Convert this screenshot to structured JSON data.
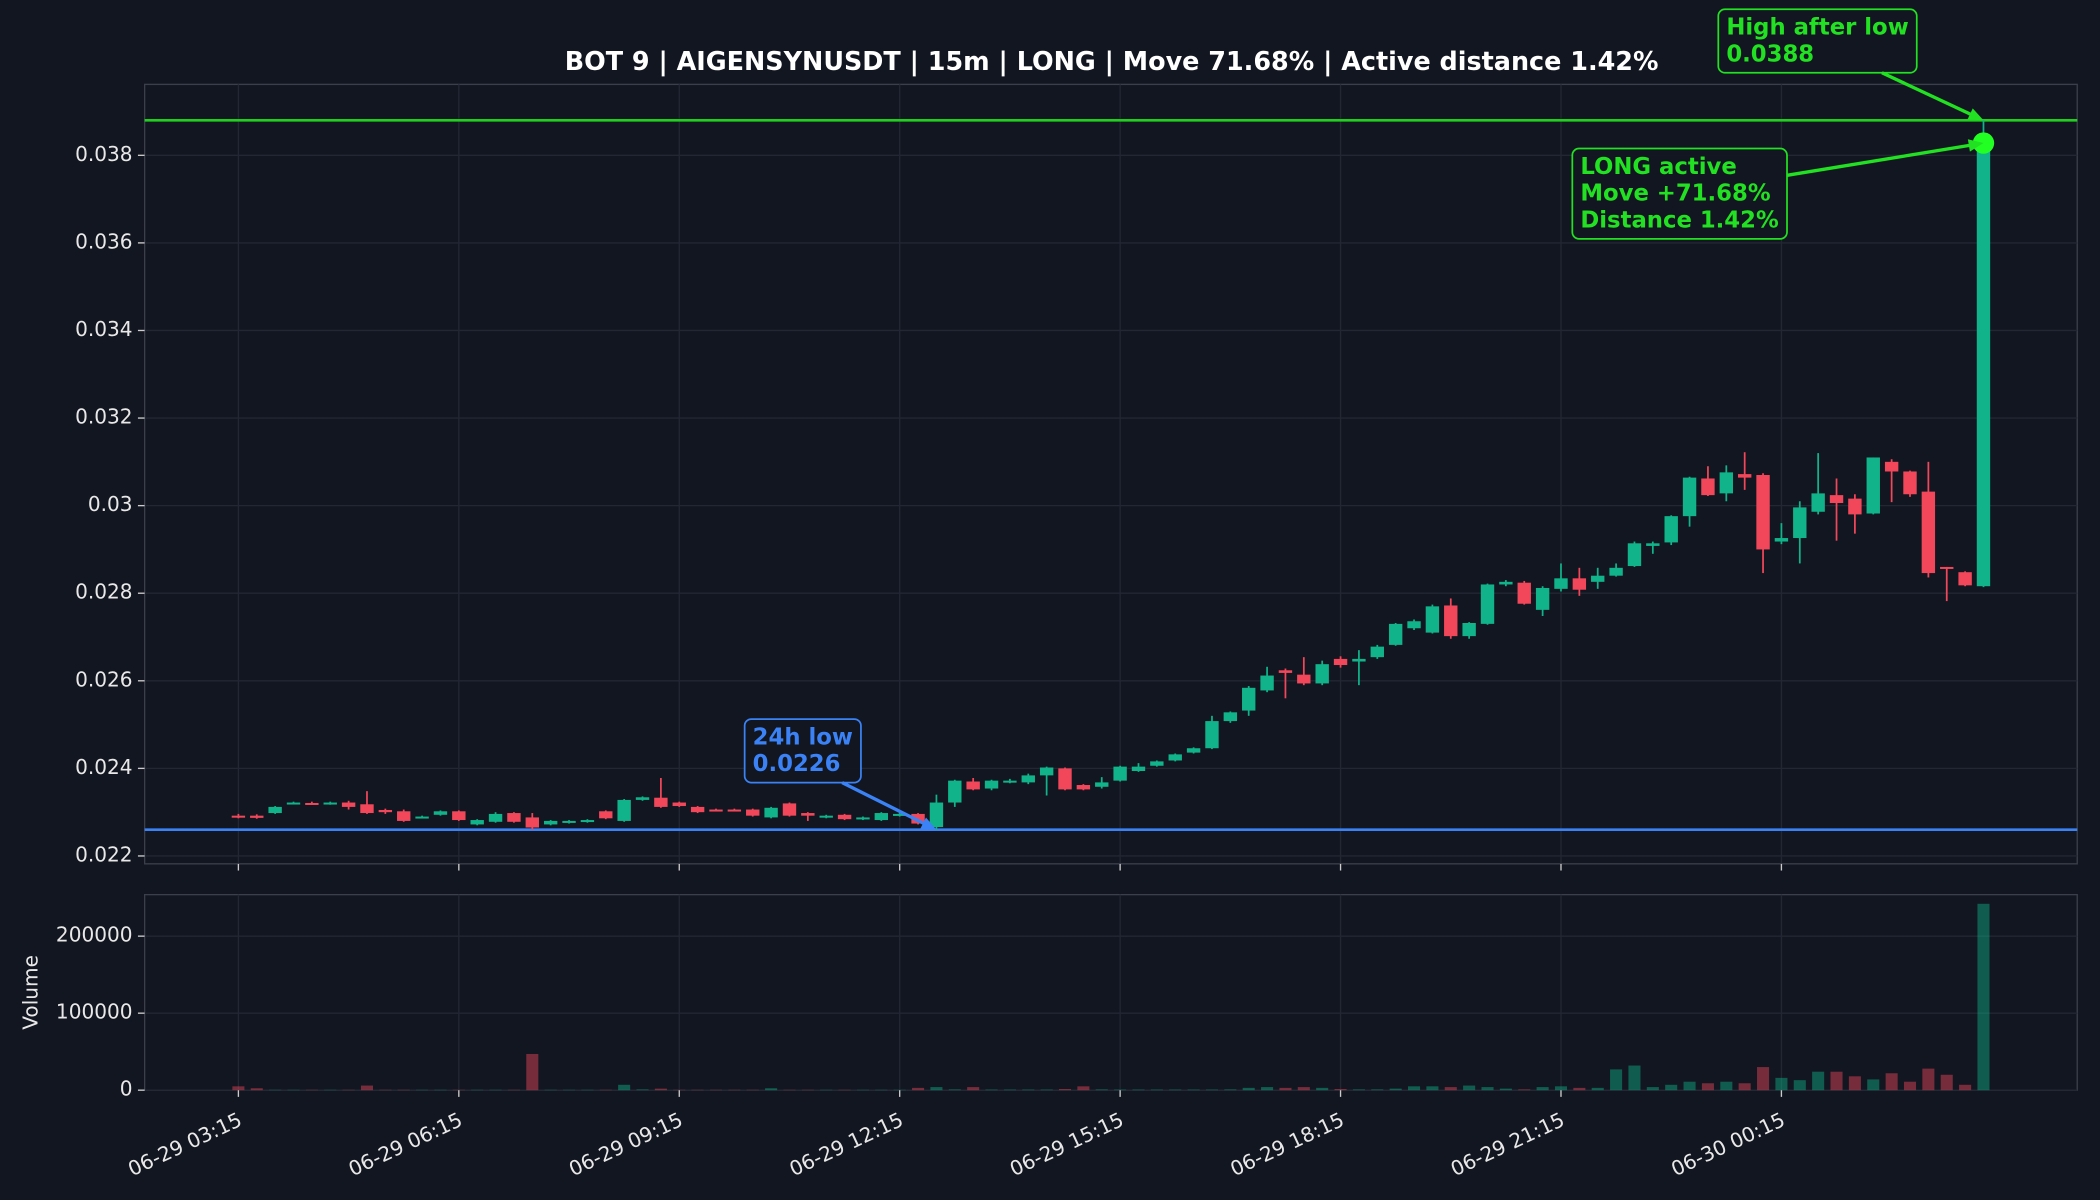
{
  "chart_data": {
    "type": "candlestick",
    "title": "BOT 9 | AIGENSYNUSDT | 15m | LONG | Move 71.68% | Active distance 1.42%",
    "x": [
      "06-29 03:15",
      "06-29 03:30",
      "06-29 03:45",
      "06-29 04:00",
      "06-29 04:15",
      "06-29 04:30",
      "06-29 04:45",
      "06-29 05:00",
      "06-29 05:15",
      "06-29 05:30",
      "06-29 05:45",
      "06-29 06:00",
      "06-29 06:15",
      "06-29 06:30",
      "06-29 06:45",
      "06-29 07:00",
      "06-29 07:15",
      "06-29 07:30",
      "06-29 07:45",
      "06-29 08:00",
      "06-29 08:15",
      "06-29 08:30",
      "06-29 08:45",
      "06-29 09:00",
      "06-29 09:15",
      "06-29 09:30",
      "06-29 09:45",
      "06-29 10:00",
      "06-29 10:15",
      "06-29 10:30",
      "06-29 10:45",
      "06-29 11:00",
      "06-29 11:15",
      "06-29 11:30",
      "06-29 11:45",
      "06-29 12:00",
      "06-29 12:15",
      "06-29 12:30",
      "06-29 12:45",
      "06-29 13:00",
      "06-29 13:15",
      "06-29 13:30",
      "06-29 13:45",
      "06-29 14:00",
      "06-29 14:15",
      "06-29 14:30",
      "06-29 14:45",
      "06-29 15:00",
      "06-29 15:15",
      "06-29 15:30",
      "06-29 15:45",
      "06-29 16:00",
      "06-29 16:15",
      "06-29 16:30",
      "06-29 16:45",
      "06-29 17:00",
      "06-29 17:15",
      "06-29 17:30",
      "06-29 17:45",
      "06-29 18:00",
      "06-29 18:15",
      "06-29 18:30",
      "06-29 18:45",
      "06-29 19:00",
      "06-29 19:15",
      "06-29 19:30",
      "06-29 19:45",
      "06-29 20:00",
      "06-29 20:15",
      "06-29 20:30",
      "06-29 20:45",
      "06-29 21:00",
      "06-29 21:15",
      "06-29 21:30",
      "06-29 21:45",
      "06-29 22:00",
      "06-29 22:15",
      "06-29 22:30",
      "06-29 22:45",
      "06-29 23:00",
      "06-29 23:15",
      "06-29 23:30",
      "06-29 23:45",
      "06-30 00:00",
      "06-30 00:15",
      "06-30 00:30",
      "06-30 00:45",
      "06-30 01:00",
      "06-30 01:15",
      "06-30 01:30",
      "06-30 01:45",
      "06-30 02:00",
      "06-30 02:15",
      "06-30 02:30",
      "06-30 02:45",
      "06-30 03:00"
    ],
    "open": [
      0.02292,
      0.02292,
      0.02298,
      0.0232,
      0.02321,
      0.0232,
      0.02322,
      0.02318,
      0.02305,
      0.02302,
      0.02288,
      0.02294,
      0.02302,
      0.02272,
      0.02278,
      0.02298,
      0.02288,
      0.02272,
      0.02276,
      0.02278,
      0.02302,
      0.0228,
      0.02328,
      0.02333,
      0.02322,
      0.02312,
      0.02306,
      0.02306,
      0.02306,
      0.02288,
      0.0232,
      0.02298,
      0.02288,
      0.02294,
      0.02284,
      0.02282,
      0.02292,
      0.02296,
      0.02266,
      0.02322,
      0.0237,
      0.02354,
      0.02368,
      0.02368,
      0.02384,
      0.024,
      0.02362,
      0.02358,
      0.02372,
      0.02394,
      0.02406,
      0.02418,
      0.02436,
      0.02446,
      0.02508,
      0.02532,
      0.02578,
      0.02624,
      0.02614,
      0.02594,
      0.0265,
      0.02644,
      0.02654,
      0.02682,
      0.0272,
      0.0271,
      0.02772,
      0.02702,
      0.0273,
      0.0282,
      0.02824,
      0.02762,
      0.0281,
      0.02834,
      0.02826,
      0.0284,
      0.02862,
      0.02908,
      0.02916,
      0.02976,
      0.03062,
      0.03028,
      0.03072,
      0.0307,
      0.02918,
      0.02926,
      0.02986,
      0.03024,
      0.03016,
      0.02982,
      0.031,
      0.03078,
      0.03032,
      0.0286,
      0.02848,
      0.02816
    ],
    "high": [
      0.02296,
      0.02295,
      0.02314,
      0.02324,
      0.02324,
      0.02324,
      0.02326,
      0.02348,
      0.02308,
      0.02306,
      0.02292,
      0.02304,
      0.02304,
      0.02284,
      0.023,
      0.023,
      0.02298,
      0.02282,
      0.02282,
      0.02284,
      0.02304,
      0.0233,
      0.02336,
      0.02378,
      0.02324,
      0.02314,
      0.02308,
      0.02308,
      0.02308,
      0.02312,
      0.02322,
      0.023,
      0.02294,
      0.02296,
      0.0229,
      0.023,
      0.02298,
      0.02298,
      0.0234,
      0.02374,
      0.02378,
      0.02374,
      0.02376,
      0.02388,
      0.02404,
      0.02402,
      0.02364,
      0.0238,
      0.02406,
      0.02412,
      0.02418,
      0.02434,
      0.02448,
      0.0252,
      0.0253,
      0.02588,
      0.02632,
      0.02628,
      0.02654,
      0.02646,
      0.02656,
      0.0267,
      0.02682,
      0.02732,
      0.0274,
      0.02774,
      0.02788,
      0.02734,
      0.02822,
      0.0283,
      0.02828,
      0.02816,
      0.02868,
      0.02858,
      0.02858,
      0.02868,
      0.02918,
      0.02918,
      0.02978,
      0.03066,
      0.0309,
      0.03092,
      0.03122,
      0.03074,
      0.0296,
      0.0301,
      0.0312,
      0.03062,
      0.03026,
      0.0311,
      0.03106,
      0.0308,
      0.031,
      0.0286,
      0.0285,
      0.0388
    ],
    "low": [
      0.02286,
      0.02285,
      0.02296,
      0.02318,
      0.02318,
      0.02317,
      0.02306,
      0.02296,
      0.02296,
      0.02278,
      0.02286,
      0.02292,
      0.0228,
      0.0227,
      0.02276,
      0.02276,
      0.0226,
      0.0227,
      0.02274,
      0.02276,
      0.02284,
      0.02278,
      0.02326,
      0.0231,
      0.02312,
      0.02298,
      0.02302,
      0.02302,
      0.0229,
      0.02286,
      0.0229,
      0.0228,
      0.02286,
      0.02282,
      0.02282,
      0.0228,
      0.0229,
      0.02272,
      0.0226,
      0.02312,
      0.0235,
      0.0235,
      0.02366,
      0.02364,
      0.02338,
      0.0235,
      0.0235,
      0.02354,
      0.0237,
      0.02392,
      0.02404,
      0.02416,
      0.02434,
      0.02444,
      0.02504,
      0.0252,
      0.02574,
      0.0256,
      0.0259,
      0.0259,
      0.0263,
      0.0259,
      0.0265,
      0.0268,
      0.02716,
      0.02708,
      0.02696,
      0.02696,
      0.02728,
      0.02816,
      0.02774,
      0.02748,
      0.02804,
      0.02794,
      0.0281,
      0.02838,
      0.0286,
      0.0289,
      0.0291,
      0.02952,
      0.03022,
      0.0301,
      0.03036,
      0.02846,
      0.02912,
      0.02868,
      0.0298,
      0.0292,
      0.02936,
      0.0298,
      0.03008,
      0.0302,
      0.02836,
      0.02782,
      0.02816,
      0.02814
    ],
    "close": [
      0.02288,
      0.02287,
      0.02312,
      0.02322,
      0.0232,
      0.02322,
      0.02312,
      0.02298,
      0.023,
      0.0228,
      0.0229,
      0.02302,
      0.02282,
      0.02282,
      0.02296,
      0.02278,
      0.02265,
      0.0228,
      0.0228,
      0.02282,
      0.02286,
      0.02328,
      0.02334,
      0.02312,
      0.02314,
      0.023,
      0.02304,
      0.02304,
      0.02292,
      0.0231,
      0.02292,
      0.02292,
      0.02292,
      0.02284,
      0.02288,
      0.02298,
      0.02296,
      0.02274,
      0.02322,
      0.02372,
      0.02352,
      0.02372,
      0.02372,
      0.02384,
      0.02402,
      0.02352,
      0.02352,
      0.02368,
      0.02404,
      0.02404,
      0.02416,
      0.02432,
      0.02446,
      0.02508,
      0.02528,
      0.02584,
      0.02612,
      0.02618,
      0.02594,
      0.02638,
      0.02636,
      0.0265,
      0.02678,
      0.0273,
      0.02736,
      0.0277,
      0.02702,
      0.02732,
      0.0282,
      0.02826,
      0.02776,
      0.02812,
      0.02834,
      0.02808,
      0.0284,
      0.02858,
      0.02914,
      0.02914,
      0.02976,
      0.03064,
      0.03024,
      0.03076,
      0.03064,
      0.029,
      0.02926,
      0.02996,
      0.03028,
      0.03006,
      0.0298,
      0.0311,
      0.03078,
      0.03026,
      0.02846,
      0.02856,
      0.02818,
      0.03828
    ],
    "up_color": "#10b38a",
    "down_color": "#f2475a",
    "ylim": [
      0.02182,
      0.03962
    ],
    "yticks": [
      0.022,
      0.024,
      0.026,
      0.028,
      0.03,
      0.032,
      0.034,
      0.036,
      0.038
    ],
    "xticks": [
      "06-29 03:15",
      "06-29 06:15",
      "06-29 09:15",
      "06-29 12:15",
      "06-29 15:15",
      "06-29 18:15",
      "06-29 21:15",
      "06-30 00:15"
    ],
    "grid": true,
    "low_line": {
      "value": 0.0226,
      "color": "#3b82f6"
    },
    "high_line": {
      "value": 0.0388,
      "color": "#1fd01f"
    },
    "active_point": {
      "x": "06-30 03:00",
      "y": 0.03828,
      "color": "#22ff22"
    },
    "annotations": [
      {
        "lines": [
          "24h low",
          "0.0226"
        ],
        "color": "#3b82f6",
        "x": "06-29 12:45",
        "y": 0.0226
      },
      {
        "lines": [
          "High after low",
          "0.0388"
        ],
        "color": "#22e022",
        "x": "06-30 03:00",
        "y": 0.0388
      },
      {
        "lines": [
          "LONG active",
          "Move +71.68%",
          "Distance 1.42%"
        ],
        "color": "#22e022",
        "x": "06-30 03:00",
        "y": 0.03828
      }
    ],
    "volume": {
      "label": "Volume",
      "values": [
        5000,
        2500,
        500,
        500,
        500,
        500,
        500,
        6000,
        500,
        500,
        500,
        500,
        500,
        500,
        500,
        500,
        47000,
        500,
        500,
        500,
        500,
        7000,
        1000,
        2000,
        500,
        500,
        500,
        500,
        500,
        2500,
        500,
        500,
        500,
        500,
        500,
        500,
        500,
        3000,
        4000,
        1000,
        4000,
        800,
        800,
        800,
        800,
        1500,
        5000,
        1000,
        800,
        800,
        800,
        800,
        800,
        800,
        1000,
        3000,
        4000,
        3000,
        4000,
        3000,
        1500,
        1000,
        1000,
        2000,
        5000,
        5000,
        4000,
        6000,
        4000,
        2000,
        1000,
        4000,
        5000,
        3000,
        3000,
        27000,
        32000,
        4000,
        7000,
        11000,
        9000,
        11000,
        9000,
        30000,
        16000,
        13000,
        24000,
        24000,
        18000,
        14000,
        22000,
        11000,
        28000,
        20000,
        7000,
        242000
      ],
      "ylim": [
        0,
        253900
      ],
      "yticks": [
        0,
        100000,
        200000
      ]
    }
  }
}
